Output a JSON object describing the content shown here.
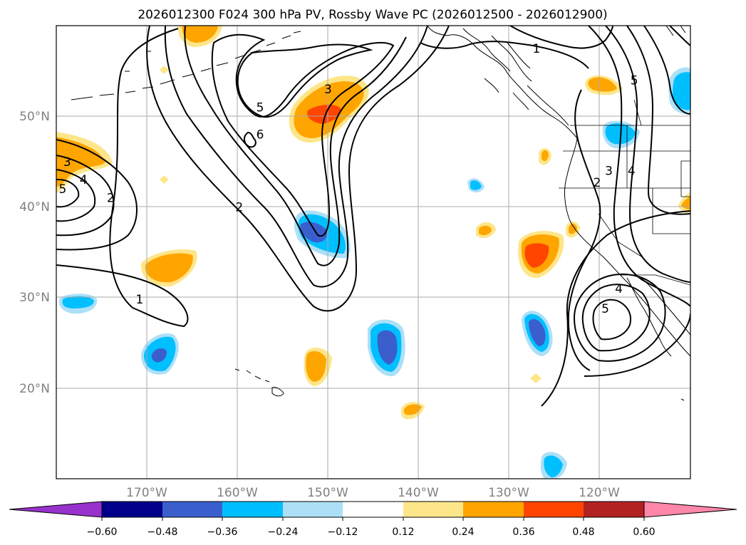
{
  "title": "2026012300 F024 300 hPa PV, Rossby Wave PC (2026012500 - 2026012900)",
  "map": {
    "lon_range": [
      -180,
      -110
    ],
    "lat_range": [
      10,
      60
    ],
    "lat_ticks": [
      {
        "value": 50,
        "label": "50°N"
      },
      {
        "value": 40,
        "label": "40°N"
      },
      {
        "value": 30,
        "label": "30°N"
      },
      {
        "value": 20,
        "label": "20°N"
      }
    ],
    "lon_ticks": [
      {
        "value": -170,
        "label": "170°W"
      },
      {
        "value": -160,
        "label": "160°W"
      },
      {
        "value": -150,
        "label": "150°W"
      },
      {
        "value": -140,
        "label": "140°W"
      },
      {
        "value": -130,
        "label": "130°W"
      },
      {
        "value": -120,
        "label": "120°W"
      }
    ],
    "contour_labels": [
      {
        "text": "1",
        "lon": -170.8,
        "lat": 29.8
      },
      {
        "text": "2",
        "lon": -174.0,
        "lat": 41.0
      },
      {
        "text": "2",
        "lon": -159.8,
        "lat": 40.0
      },
      {
        "text": "3",
        "lon": -178.8,
        "lat": 45.0
      },
      {
        "text": "4",
        "lon": -177.0,
        "lat": 43.0
      },
      {
        "text": "5",
        "lon": -179.3,
        "lat": 42.0
      },
      {
        "text": "3",
        "lon": -150.0,
        "lat": 53.0
      },
      {
        "text": "5",
        "lon": -157.5,
        "lat": 51.0
      },
      {
        "text": "6",
        "lon": -157.5,
        "lat": 48.0
      },
      {
        "text": "1",
        "lon": -127.0,
        "lat": 57.5
      },
      {
        "text": "2",
        "lon": -120.3,
        "lat": 42.7
      },
      {
        "text": "3",
        "lon": -119.0,
        "lat": 44.0
      },
      {
        "text": "4",
        "lon": -116.5,
        "lat": 44.0
      },
      {
        "text": "5",
        "lon": -116.2,
        "lat": 54.0
      },
      {
        "text": "4",
        "lon": -117.9,
        "lat": 31.0
      },
      {
        "text": "5",
        "lon": -119.4,
        "lat": 28.8
      }
    ]
  },
  "colorbar": {
    "colors": [
      "#9932cc",
      "#00008b",
      "#3a5fcd",
      "#00bfff",
      "#ade0f7",
      "#ffffff",
      "#fde68a",
      "#ffa500",
      "#ff4500",
      "#b22222",
      "#ff88aa"
    ],
    "tick_labels": [
      "−0.60",
      "−0.48",
      "−0.36",
      "−0.24",
      "−0.12",
      "0.12",
      "0.24",
      "0.36",
      "0.48",
      "0.60"
    ]
  },
  "legend_colors": {
    "pv_contour": "#000000",
    "coast": "#000000",
    "grid": "#aaaaaa"
  }
}
